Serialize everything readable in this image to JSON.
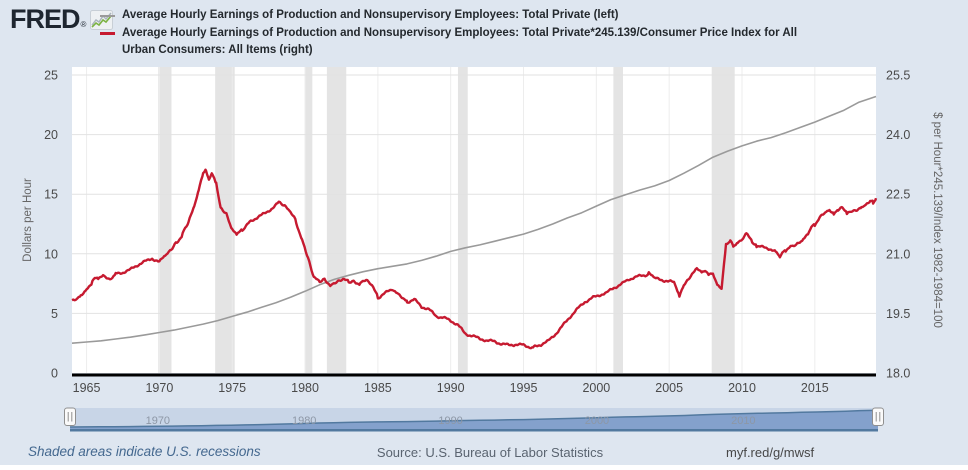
{
  "header": {
    "logo_text": "FRED",
    "registered_mark": "®",
    "logo_icon": "mini-line-chart-icon",
    "legend": [
      {
        "color": "#9a9a9a",
        "label": "Average Hourly Earnings of Production and Nonsupervisory Employees: Total Private (left)",
        "lines": [
          "Average Hourly Earnings of Production and Nonsupervisory Employees: Total Private (left)"
        ]
      },
      {
        "color": "#c61a30",
        "label": "Average Hourly Earnings of Production and Nonsupervisory Employees: Total Private*245.139/Consumer Price Index for All Urban Consumers: All Items (right)",
        "lines": [
          "Average Hourly Earnings of Production and Nonsupervisory Employees: Total Private*245.139/Consumer Price Index for All",
          "Urban Consumers: All Items (right)"
        ]
      }
    ]
  },
  "chart_data": {
    "type": "line",
    "x_range": [
      1964.0,
      2019.2
    ],
    "x_ticks": [
      1965,
      1970,
      1975,
      1980,
      1985,
      1990,
      1995,
      2000,
      2005,
      2010,
      2015
    ],
    "left_axis": {
      "label": "Dollars per Hour",
      "range": [
        0,
        25
      ],
      "ticks": [
        "0",
        "5",
        "10",
        "15",
        "20",
        "25"
      ],
      "tick_values": [
        0,
        5,
        10,
        15,
        20,
        25
      ]
    },
    "right_axis": {
      "label": "$ per Hour*245.139/Index 1982-1984=100",
      "range": [
        18.0,
        25.5
      ],
      "ticks": [
        "18.0",
        "19.5",
        "21.0",
        "22.5",
        "24.0",
        "25.5"
      ],
      "tick_values": [
        18.0,
        19.5,
        21.0,
        22.5,
        24.0,
        25.5
      ]
    },
    "grid": true,
    "recessions": [
      [
        1969.92,
        1970.83
      ],
      [
        1973.83,
        1975.17
      ],
      [
        1980.0,
        1980.5
      ],
      [
        1981.5,
        1982.83
      ],
      [
        1990.5,
        1991.17
      ],
      [
        2001.17,
        2001.83
      ],
      [
        2007.92,
        2009.5
      ]
    ],
    "series": [
      {
        "name": "Average Hourly Earnings of Production and Nonsupervisory Employees: Total Private",
        "axis": "left",
        "color": "#9a9a9a",
        "stroke_width": 1.6,
        "noise": 0,
        "points": [
          [
            1964,
            2.5
          ],
          [
            1965,
            2.6
          ],
          [
            1966,
            2.7
          ],
          [
            1967,
            2.85
          ],
          [
            1968,
            3.0
          ],
          [
            1969,
            3.2
          ],
          [
            1970,
            3.4
          ],
          [
            1971,
            3.6
          ],
          [
            1972,
            3.85
          ],
          [
            1973,
            4.1
          ],
          [
            1974,
            4.4
          ],
          [
            1975,
            4.75
          ],
          [
            1976,
            5.1
          ],
          [
            1977,
            5.5
          ],
          [
            1978,
            5.9
          ],
          [
            1979,
            6.35
          ],
          [
            1980,
            6.85
          ],
          [
            1981,
            7.4
          ],
          [
            1982,
            7.85
          ],
          [
            1983,
            8.2
          ],
          [
            1984,
            8.5
          ],
          [
            1985,
            8.75
          ],
          [
            1986,
            8.95
          ],
          [
            1987,
            9.15
          ],
          [
            1988,
            9.45
          ],
          [
            1989,
            9.8
          ],
          [
            1990,
            10.2
          ],
          [
            1991,
            10.5
          ],
          [
            1992,
            10.75
          ],
          [
            1993,
            11.05
          ],
          [
            1994,
            11.35
          ],
          [
            1995,
            11.65
          ],
          [
            1996,
            12.05
          ],
          [
            1997,
            12.5
          ],
          [
            1998,
            13.0
          ],
          [
            1999,
            13.45
          ],
          [
            2000,
            14.0
          ],
          [
            2001,
            14.55
          ],
          [
            2002,
            14.95
          ],
          [
            2003,
            15.35
          ],
          [
            2004,
            15.7
          ],
          [
            2005,
            16.15
          ],
          [
            2006,
            16.75
          ],
          [
            2007,
            17.4
          ],
          [
            2008,
            18.1
          ],
          [
            2009,
            18.6
          ],
          [
            2010,
            19.05
          ],
          [
            2011,
            19.45
          ],
          [
            2012,
            19.75
          ],
          [
            2013,
            20.15
          ],
          [
            2014,
            20.6
          ],
          [
            2015,
            21.05
          ],
          [
            2016,
            21.55
          ],
          [
            2017,
            22.05
          ],
          [
            2018,
            22.7
          ],
          [
            2019.2,
            23.2
          ]
        ]
      },
      {
        "name": "Average Hourly Earnings of Production and Nonsupervisory Employees: Total Private*245.139/Consumer Price Index for All Urban Consumers: All Items",
        "axis": "right",
        "color": "#c61a30",
        "stroke_width": 2.4,
        "noise": 0.05,
        "points": [
          [
            1964.0,
            19.8
          ],
          [
            1964.3,
            19.85
          ],
          [
            1964.6,
            19.95
          ],
          [
            1965.0,
            20.1
          ],
          [
            1965.4,
            20.3
          ],
          [
            1965.8,
            20.4
          ],
          [
            1966.2,
            20.45
          ],
          [
            1966.6,
            20.35
          ],
          [
            1967.0,
            20.5
          ],
          [
            1967.5,
            20.55
          ],
          [
            1968.0,
            20.6
          ],
          [
            1968.5,
            20.7
          ],
          [
            1969.0,
            20.8
          ],
          [
            1969.5,
            20.9
          ],
          [
            1970.0,
            20.8
          ],
          [
            1970.4,
            20.95
          ],
          [
            1970.8,
            21.1
          ],
          [
            1971.2,
            21.3
          ],
          [
            1971.6,
            21.5
          ],
          [
            1972.0,
            21.8
          ],
          [
            1972.4,
            22.2
          ],
          [
            1972.7,
            22.6
          ],
          [
            1973.0,
            23.0
          ],
          [
            1973.2,
            23.1
          ],
          [
            1973.4,
            22.9
          ],
          [
            1973.6,
            23.0
          ],
          [
            1973.9,
            22.75
          ],
          [
            1974.2,
            22.15
          ],
          [
            1974.6,
            22.0
          ],
          [
            1975.0,
            21.6
          ],
          [
            1975.3,
            21.45
          ],
          [
            1975.7,
            21.6
          ],
          [
            1976.2,
            21.8
          ],
          [
            1976.7,
            21.9
          ],
          [
            1977.2,
            22.0
          ],
          [
            1977.7,
            22.15
          ],
          [
            1978.2,
            22.3
          ],
          [
            1978.6,
            22.2
          ],
          [
            1979.0,
            22.05
          ],
          [
            1979.4,
            21.8
          ],
          [
            1979.8,
            21.35
          ],
          [
            1980.2,
            20.9
          ],
          [
            1980.6,
            20.4
          ],
          [
            1981.0,
            20.3
          ],
          [
            1981.4,
            20.35
          ],
          [
            1981.8,
            20.2
          ],
          [
            1982.2,
            20.3
          ],
          [
            1982.6,
            20.35
          ],
          [
            1983.0,
            20.3
          ],
          [
            1983.4,
            20.3
          ],
          [
            1983.8,
            20.25
          ],
          [
            1984.2,
            20.35
          ],
          [
            1984.6,
            20.2
          ],
          [
            1985.0,
            19.9
          ],
          [
            1985.5,
            20.0
          ],
          [
            1986.0,
            20.1
          ],
          [
            1986.4,
            20.0
          ],
          [
            1987.0,
            19.8
          ],
          [
            1987.5,
            19.85
          ],
          [
            1988.0,
            19.65
          ],
          [
            1988.5,
            19.6
          ],
          [
            1989.0,
            19.45
          ],
          [
            1989.5,
            19.4
          ],
          [
            1990.0,
            19.3
          ],
          [
            1990.5,
            19.2
          ],
          [
            1991.0,
            19.0
          ],
          [
            1991.5,
            18.95
          ],
          [
            1992.0,
            18.85
          ],
          [
            1992.5,
            18.8
          ],
          [
            1993.0,
            18.8
          ],
          [
            1993.5,
            18.75
          ],
          [
            1994.0,
            18.7
          ],
          [
            1994.5,
            18.7
          ],
          [
            1995.0,
            18.7
          ],
          [
            1995.7,
            18.65
          ],
          [
            1996.2,
            18.7
          ],
          [
            1996.7,
            18.8
          ],
          [
            1997.2,
            19.0
          ],
          [
            1997.7,
            19.2
          ],
          [
            1998.2,
            19.4
          ],
          [
            1998.7,
            19.6
          ],
          [
            1999.2,
            19.8
          ],
          [
            1999.7,
            19.9
          ],
          [
            2000.2,
            19.95
          ],
          [
            2000.7,
            20.0
          ],
          [
            2001.2,
            20.15
          ],
          [
            2001.7,
            20.25
          ],
          [
            2002.2,
            20.35
          ],
          [
            2002.7,
            20.4
          ],
          [
            2003.2,
            20.45
          ],
          [
            2003.6,
            20.5
          ],
          [
            2004.0,
            20.4
          ],
          [
            2004.5,
            20.35
          ],
          [
            2005.0,
            20.3
          ],
          [
            2005.4,
            20.25
          ],
          [
            2005.7,
            19.95
          ],
          [
            2006.0,
            20.2
          ],
          [
            2006.4,
            20.4
          ],
          [
            2006.9,
            20.6
          ],
          [
            2007.3,
            20.55
          ],
          [
            2007.7,
            20.5
          ],
          [
            2008.0,
            20.5
          ],
          [
            2008.3,
            20.2
          ],
          [
            2008.6,
            20.1
          ],
          [
            2008.9,
            21.2
          ],
          [
            2009.2,
            21.3
          ],
          [
            2009.4,
            21.2
          ],
          [
            2009.7,
            21.3
          ],
          [
            2010.0,
            21.35
          ],
          [
            2010.3,
            21.5
          ],
          [
            2010.7,
            21.3
          ],
          [
            2011.0,
            21.2
          ],
          [
            2011.5,
            21.15
          ],
          [
            2012.0,
            21.1
          ],
          [
            2012.3,
            21.05
          ],
          [
            2012.6,
            20.9
          ],
          [
            2013.0,
            21.1
          ],
          [
            2013.4,
            21.2
          ],
          [
            2013.8,
            21.25
          ],
          [
            2014.2,
            21.35
          ],
          [
            2014.6,
            21.55
          ],
          [
            2015.0,
            21.75
          ],
          [
            2015.4,
            21.95
          ],
          [
            2015.7,
            22.05
          ],
          [
            2016.0,
            22.1
          ],
          [
            2016.3,
            22.0
          ],
          [
            2016.6,
            22.1
          ],
          [
            2016.9,
            22.15
          ],
          [
            2017.2,
            22.0
          ],
          [
            2017.5,
            22.05
          ],
          [
            2017.9,
            22.1
          ],
          [
            2018.2,
            22.15
          ],
          [
            2018.5,
            22.2
          ],
          [
            2018.8,
            22.3
          ],
          [
            2019.0,
            22.3
          ],
          [
            2019.2,
            22.4
          ]
        ]
      }
    ],
    "colors": {
      "background": "#dee6f0",
      "plot_background": "#ffffff",
      "recession_band": "#e4e4e4",
      "h_gridline": "#e2e2e2",
      "v_gridline": "#ededed",
      "x_axis": "#000000",
      "tick_text": "#4a4a4a",
      "axis_title": "#666666"
    }
  },
  "slider": {
    "decade_labels": [
      "1970",
      "1980",
      "1990",
      "2000",
      "2010"
    ],
    "decade_years": [
      1970,
      1980,
      1990,
      2000,
      2010
    ],
    "track_color": "#c8d5e7",
    "area_fill": "#84a1cc",
    "area_line": "#52799f",
    "label_color": "#8d97a6",
    "handle_icon": "drag-grip-icon"
  },
  "footer": {
    "recession_note": "Shaded areas indicate U.S. recessions",
    "source": "Source: U.S. Bureau of Labor Statistics",
    "link": "myf.red/g/mwsf"
  }
}
